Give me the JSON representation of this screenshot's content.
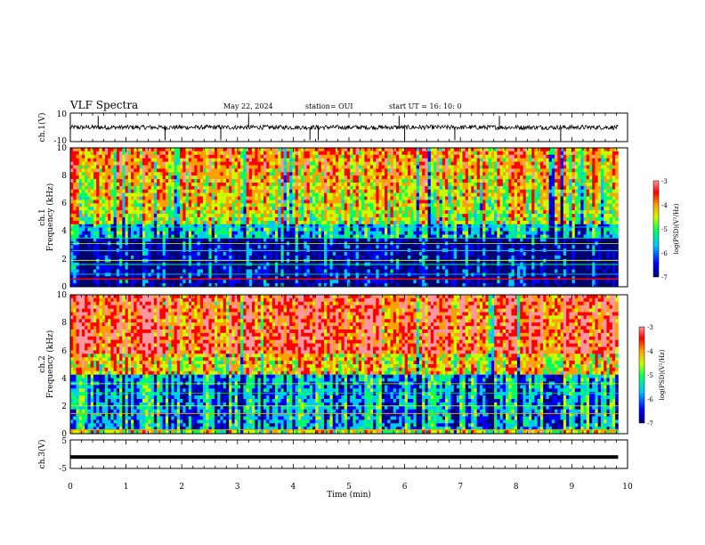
{
  "header": {
    "title": "VLF Spectra",
    "date": "May 22, 2024",
    "station": "station= OUI",
    "start": "start  UT =   16: 10: 0"
  },
  "colors": {
    "spectrogram_stops": [
      "#00006e",
      "#0000ff",
      "#00c8ff",
      "#00ff64",
      "#c8ff00",
      "#ffa000",
      "#ff0000",
      "#ff96a0"
    ],
    "trace": "#000000"
  },
  "chart_data": [
    {
      "type": "line",
      "name": "ch1-waveform",
      "ylabel": "ch.1(V)",
      "ylim": [
        -10,
        10
      ],
      "yticks": [
        "10",
        "-10"
      ],
      "xlim": [
        0,
        10
      ],
      "baseline": 0,
      "spike_times": [
        0.5,
        1.7,
        2.7,
        3.2,
        4.3,
        4.45,
        5.9,
        6.0,
        6.9,
        7.7,
        8.8
      ]
    },
    {
      "type": "heatmap",
      "name": "ch1-spectrogram",
      "ylabel": "Frequency (kHz)",
      "channel_label": "ch.1",
      "xlim": [
        0,
        10
      ],
      "ylim": [
        0,
        10
      ],
      "yticks": [
        "0",
        "2",
        "4",
        "6",
        "8",
        "10"
      ],
      "colorbar": {
        "label": "log(PSD)(V²/Hz)",
        "min": -7,
        "max": -3,
        "ticks": [
          "-3",
          "-4",
          "-5",
          "-6",
          "-7"
        ]
      }
    },
    {
      "type": "heatmap",
      "name": "ch2-spectrogram",
      "ylabel": "Frequency (kHz)",
      "channel_label": "ch.2",
      "xlim": [
        0,
        10
      ],
      "ylim": [
        0,
        10
      ],
      "yticks": [
        "0",
        "2",
        "4",
        "6",
        "8",
        "10"
      ],
      "colorbar": {
        "label": "log(PSD)(V²/Hz)",
        "min": -7,
        "max": -3,
        "ticks": [
          "-3",
          "-4",
          "-5",
          "-6",
          "-7"
        ]
      }
    },
    {
      "type": "line",
      "name": "ch3-trace",
      "ylabel": "ch.3(V)",
      "ylim": [
        -5,
        5
      ],
      "yticks": [
        "5",
        "-5"
      ],
      "xlim": [
        0,
        10
      ],
      "value": -1
    }
  ],
  "xaxis": {
    "label": "Time (min)",
    "ticks": [
      "0",
      "1",
      "2",
      "3",
      "4",
      "5",
      "6",
      "7",
      "8",
      "9",
      "10"
    ],
    "data_end": 9.83
  }
}
